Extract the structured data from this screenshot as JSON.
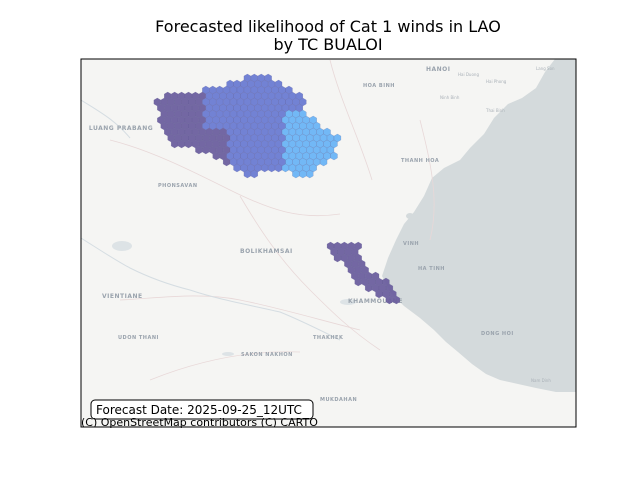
{
  "figure": {
    "title_line1": "Forecasted likelihood of Cat 1 winds in LAO",
    "title_line2": "by TC BUALOI",
    "forecast_date": "Forecast Date: 2025-09-25_12UTC",
    "attribution": "(C) OpenStreetMap contributors (C) CARTO"
  },
  "basemap": {
    "land_color": "#f5f5f3",
    "sea_color": "#d4dadc",
    "labels_major": [
      "LUANG PRABANG",
      "PHONSAVAN",
      "BOLIKHAMSAI",
      "VIENTIANE",
      "KHAMMOUANE",
      "UDON THANI",
      "SAKON NAKHON",
      "THAKHEK",
      "THANH HOA",
      "HANOI",
      "HOA BINH",
      "MUKDAHAN",
      "VINH",
      "HA TINH",
      "DONG HOI"
    ],
    "labels_minor": [
      "Hai Duong",
      "Hai Phong",
      "Thai Binh",
      "Nam Dinh",
      "Ninh Binh",
      "Lang Son"
    ]
  },
  "map_data": {
    "cell_colors": {
      "low": "#6b5f9e",
      "mid": "#6a7bd2",
      "high": "#6ab4f6"
    },
    "clusters": [
      {
        "name": "northern-cluster",
        "dominant": "mid"
      },
      {
        "name": "southern-cluster",
        "dominant": "low"
      }
    ]
  }
}
